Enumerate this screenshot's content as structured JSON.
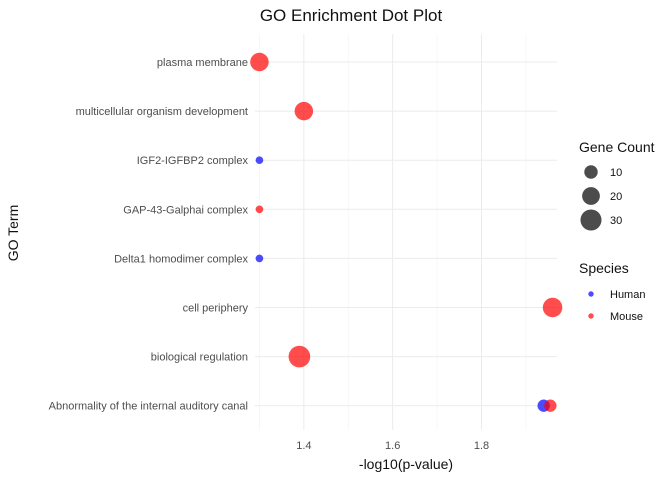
{
  "chart_data": {
    "type": "scatter",
    "title": "GO Enrichment Dot Plot",
    "xlabel": "-log10(p-value)",
    "ylabel": "GO Term",
    "xlim": [
      1.29,
      1.97
    ],
    "x_ticks": [
      "1.4",
      "1.6",
      "1.8"
    ],
    "x_tick_values": [
      1.4,
      1.6,
      1.8
    ],
    "grid": true,
    "legend_position": "right",
    "categories": [
      "plasma membrane",
      "multicellular organism development",
      "IGF2-IGFBP2 complex",
      "GAP-43-Galphai complex",
      "Delta1 homodimer complex",
      "cell periphery",
      "biological regulation",
      "Abnormality of the internal auditory canal"
    ],
    "series": [
      {
        "name": "Human",
        "color": "#0000ff",
        "points": [
          {
            "term": "IGF2-IGFBP2 complex",
            "x": 1.3,
            "count": 2
          },
          {
            "term": "Delta1 homodimer complex",
            "x": 1.3,
            "count": 2
          },
          {
            "term": "Abnormality of the internal auditory canal",
            "x": 1.94,
            "count": 8
          }
        ]
      },
      {
        "name": "Mouse",
        "color": "#ff0000",
        "points": [
          {
            "term": "plasma membrane",
            "x": 1.3,
            "count": 22
          },
          {
            "term": "multicellular organism development",
            "x": 1.4,
            "count": 22
          },
          {
            "term": "GAP-43-Galphai complex",
            "x": 1.3,
            "count": 2
          },
          {
            "term": "cell periphery",
            "x": 1.96,
            "count": 25
          },
          {
            "term": "biological regulation",
            "x": 1.39,
            "count": 32
          },
          {
            "term": "Abnormality of the internal auditory canal",
            "x": 1.955,
            "count": 8
          }
        ]
      }
    ],
    "size_legend": {
      "title": "Gene Count",
      "entries": [
        {
          "label": "10",
          "value": 10
        },
        {
          "label": "20",
          "value": 20
        },
        {
          "label": "30",
          "value": 30
        }
      ]
    },
    "color_legend": {
      "title": "Species",
      "entries": [
        {
          "label": "Human",
          "color": "#0000ff"
        },
        {
          "label": "Mouse",
          "color": "#ff0000"
        }
      ]
    }
  }
}
